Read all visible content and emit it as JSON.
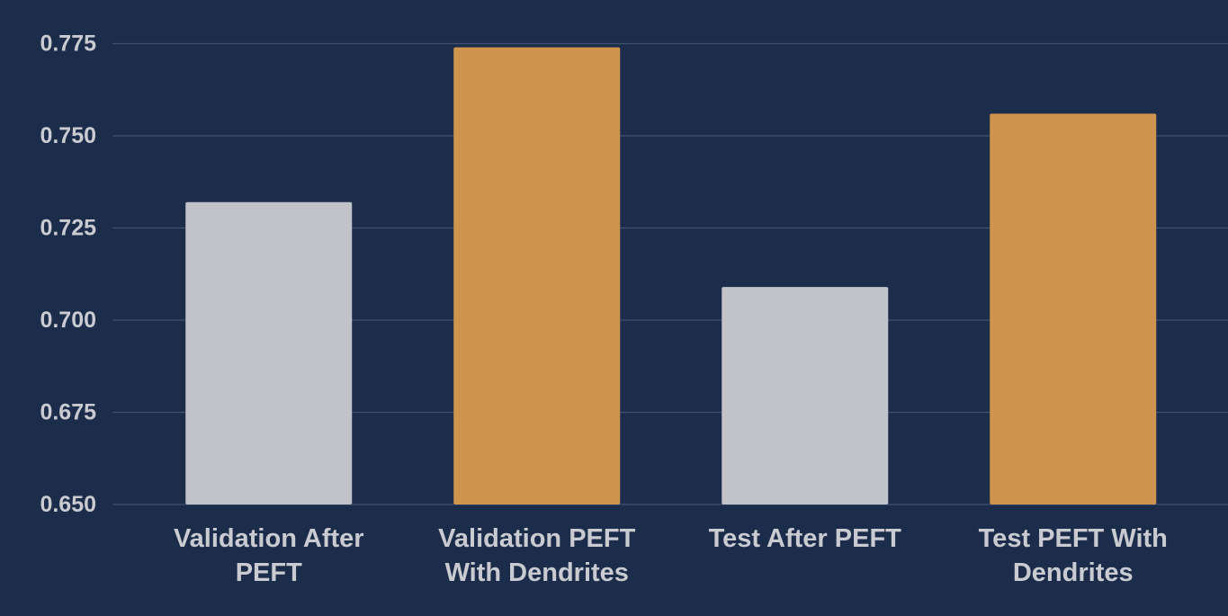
{
  "chart_data": {
    "type": "bar",
    "categories": [
      [
        "Validation After",
        "PEFT"
      ],
      [
        "Validation PEFT",
        "With Dendrites"
      ],
      [
        "Test After PEFT"
      ],
      [
        "Test PEFT With",
        "Dendrites"
      ]
    ],
    "values": [
      0.732,
      0.774,
      0.709,
      0.756
    ],
    "bar_colors": [
      "#c1c3c8",
      "#cf944e",
      "#c1c3c8",
      "#cf944e"
    ],
    "ylim": [
      0.65,
      0.775
    ],
    "yticks": [
      "0.650",
      "0.675",
      "0.700",
      "0.725",
      "0.750",
      "0.775"
    ],
    "grid": true,
    "title": "",
    "xlabel": "",
    "ylabel": ""
  },
  "colors": {
    "background": "#1c2d4b",
    "gridline": "#3f5170",
    "text": "#c9cbd1"
  }
}
